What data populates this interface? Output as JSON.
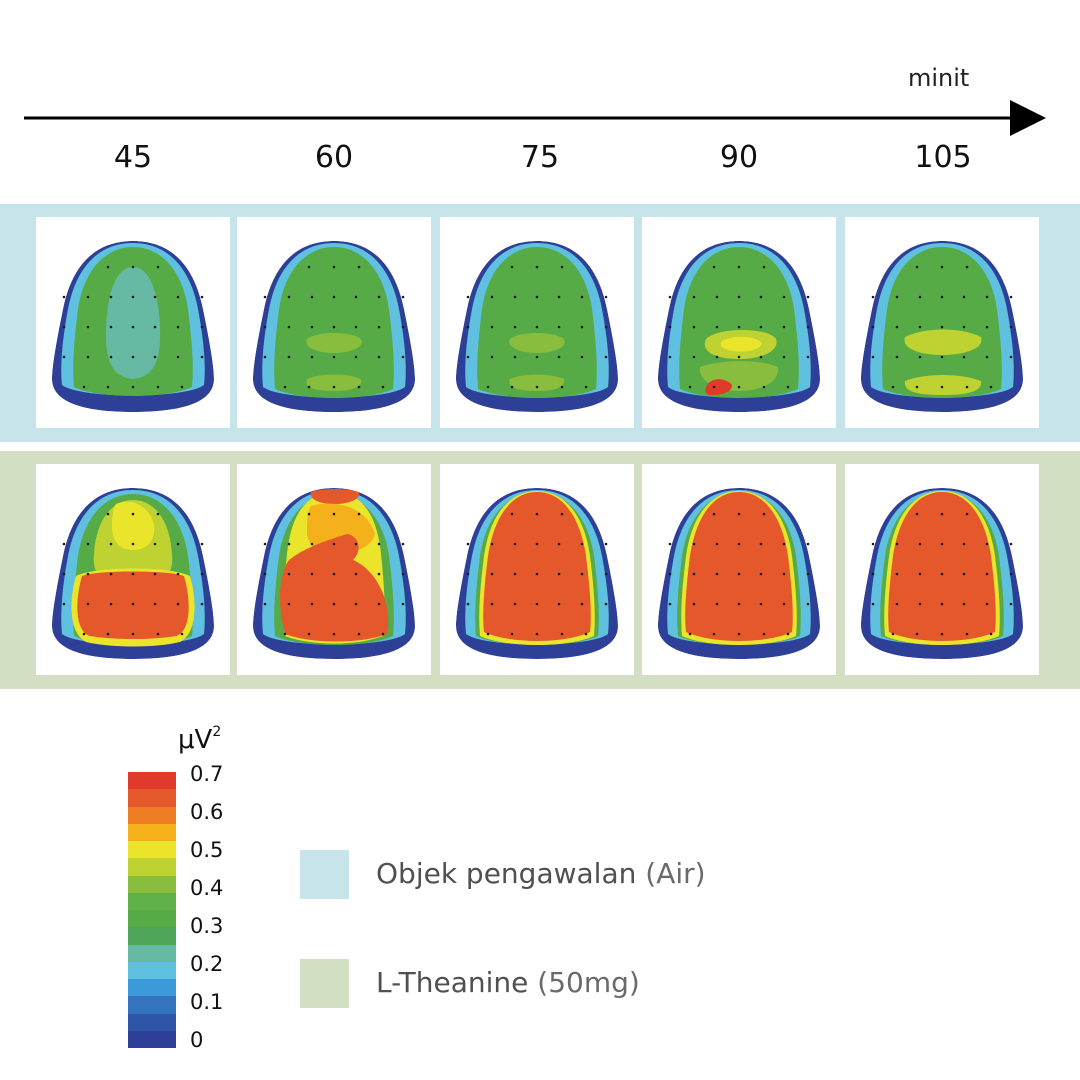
{
  "axis": {
    "unit_label": "minit",
    "times": [
      "45",
      "60",
      "75",
      "90",
      "105"
    ]
  },
  "colors": {
    "control_band": "#c7e4ea",
    "treatment_band": "#d3dfc2",
    "scale": [
      "#2e3f97",
      "#2f55a8",
      "#3473bf",
      "#3d9ad8",
      "#5fc0df",
      "#66b9a3",
      "#4fa65a",
      "#56ab47",
      "#60b147",
      "#89bd3e",
      "#bed232",
      "#eae52a",
      "#f5b11c",
      "#ef7d23",
      "#e4582b",
      "#e03a2a"
    ]
  },
  "colorbar": {
    "unit": "μV",
    "unit_exp": "2",
    "ticks": [
      "0.7",
      "0.6",
      "0.5",
      "0.4",
      "0.3",
      "0.2",
      "0.1",
      "0"
    ]
  },
  "legend": [
    {
      "name": "Objek pengawalan",
      "paren": "(Air)",
      "color": "#c7e4ea"
    },
    {
      "name": "L-Theanine",
      "paren": "(50mg)",
      "color": "#d3dfc2"
    }
  ],
  "rows": [
    {
      "group": "control",
      "maps": [
        "green-low",
        "green-mid",
        "green-mid",
        "green-hotspot",
        "green-yellow"
      ]
    },
    {
      "group": "treatment",
      "maps": [
        "red-posterior",
        "red-partial",
        "red-full",
        "red-full",
        "red-full"
      ]
    }
  ]
}
